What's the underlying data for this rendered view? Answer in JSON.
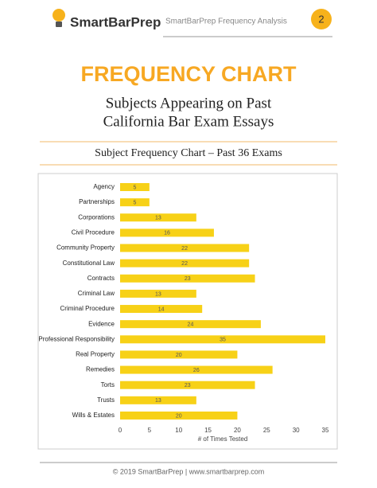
{
  "header": {
    "brand": "SmartBarPrep",
    "title": "SmartBarPrep Frequency Analysis",
    "page": 2
  },
  "title": "FREQUENCY CHART",
  "subtitle": [
    "Subjects Appearing on Past",
    "California Bar Exam Essays"
  ],
  "chart_data": {
    "type": "bar",
    "orientation": "horizontal",
    "title": "Subject Frequency Chart – Past 36 Exams",
    "xlabel": "# of Times Tested",
    "categories": [
      "Agency",
      "Partnerships",
      "Corporations",
      "Civil Procedure",
      "Community Property",
      "Constitutional Law",
      "Contracts",
      "Criminal Law",
      "Criminal Procedure",
      "Evidence",
      "Professional Responsibility",
      "Real Property",
      "Remedies",
      "Torts",
      "Trusts",
      "Wills & Estates"
    ],
    "values": [
      5,
      5,
      13,
      16,
      22,
      22,
      23,
      13,
      14,
      24,
      35,
      20,
      26,
      23,
      13,
      20
    ],
    "color": "#f7d117",
    "xlim": [
      0,
      35
    ],
    "xticks": [
      0,
      5,
      10,
      15,
      20,
      25,
      30,
      35
    ],
    "grid": false
  },
  "footer": "© 2019 SmartBarPrep |  www.smartbarprep.com"
}
